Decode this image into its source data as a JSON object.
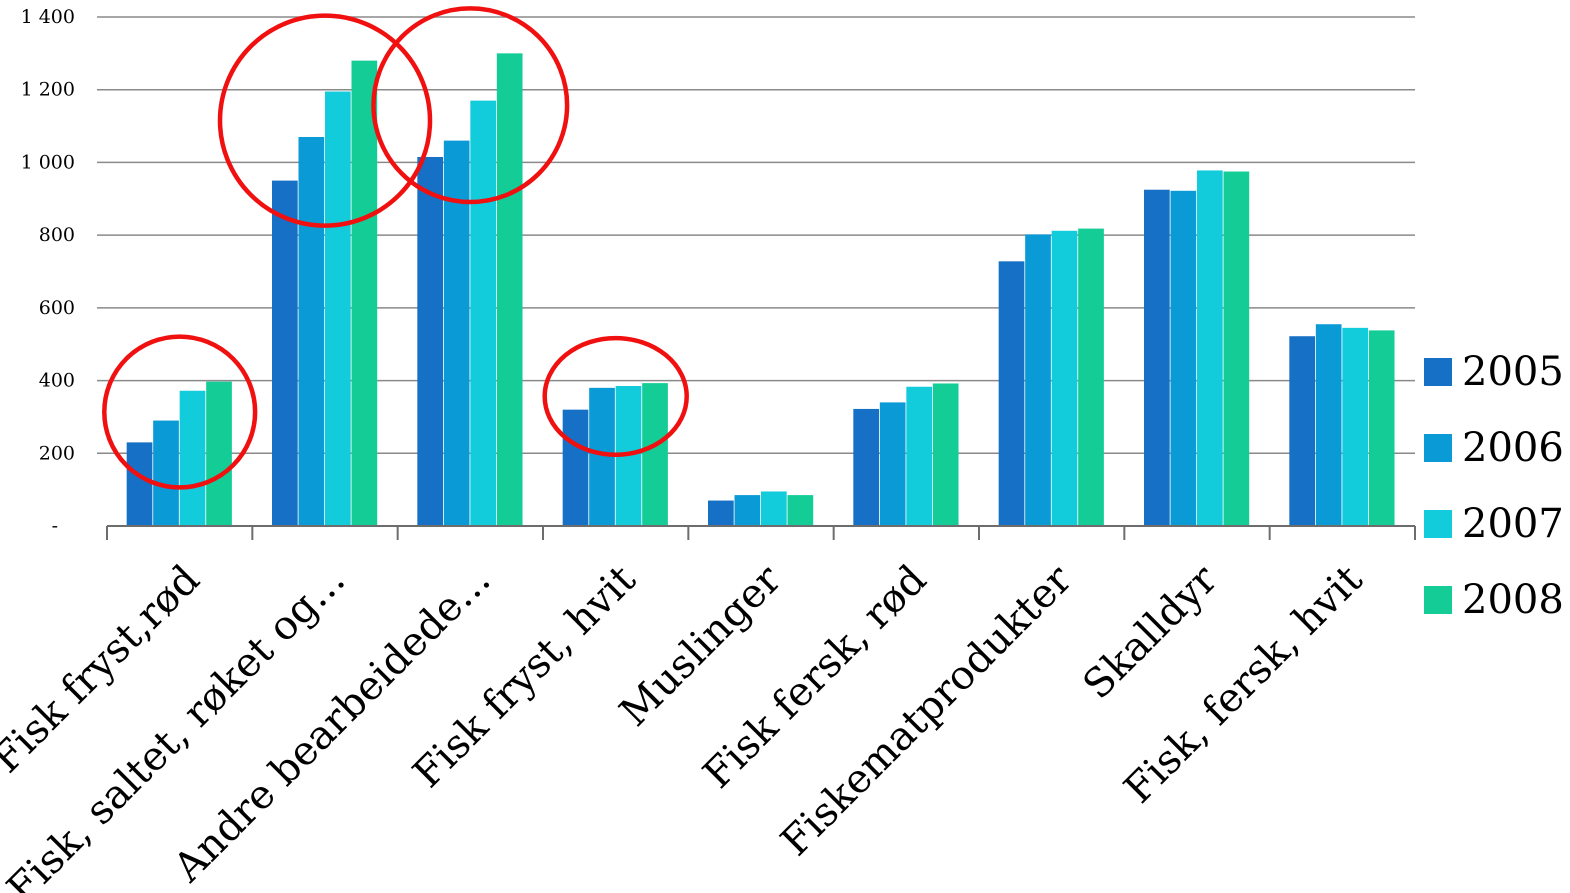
{
  "chart_data": {
    "type": "bar",
    "categories": [
      "Fisk fryst,rød",
      "Fisk, saltet, røket og...",
      "Andre bearbeidede...",
      "Fisk fryst, hvit",
      "Muslinger",
      "Fisk fersk, rød",
      "Fiskematprodukter",
      "Skalldyr",
      "Fisk, fersk, hvit"
    ],
    "series": [
      {
        "name": "2005",
        "color": "#1570c6",
        "values": [
          230,
          950,
          1015,
          320,
          70,
          322,
          728,
          925,
          522
        ]
      },
      {
        "name": "2006",
        "color": "#0a9ad6",
        "values": [
          290,
          1070,
          1060,
          380,
          85,
          340,
          802,
          922,
          555
        ]
      },
      {
        "name": "2007",
        "color": "#12ccdc",
        "values": [
          372,
          1195,
          1170,
          385,
          95,
          383,
          812,
          978,
          545
        ]
      },
      {
        "name": "2008",
        "color": "#14cc96",
        "values": [
          397,
          1280,
          1300,
          393,
          85,
          392,
          818,
          975,
          538
        ]
      }
    ],
    "y_ticks": [
      {
        "value": 0,
        "label": "-"
      },
      {
        "value": 200,
        "label": "200"
      },
      {
        "value": 400,
        "label": "400"
      },
      {
        "value": 600,
        "label": "600"
      },
      {
        "value": 800,
        "label": "800"
      },
      {
        "value": 1000,
        "label": "1 000"
      },
      {
        "value": 1200,
        "label": "1 200"
      },
      {
        "value": 1400,
        "label": "1 400"
      }
    ],
    "ylim": [
      0,
      1400
    ],
    "grid": true,
    "legend_position": "right",
    "title": "",
    "xlabel": "",
    "ylabel": "",
    "annotations": {
      "type": "red-circle",
      "color": "#f01010",
      "highlighted_categories": [
        "Fisk fryst,rød",
        "Fisk, saltet, røket og...",
        "Andre bearbeidede...",
        "Fisk fryst, hvit"
      ]
    }
  }
}
